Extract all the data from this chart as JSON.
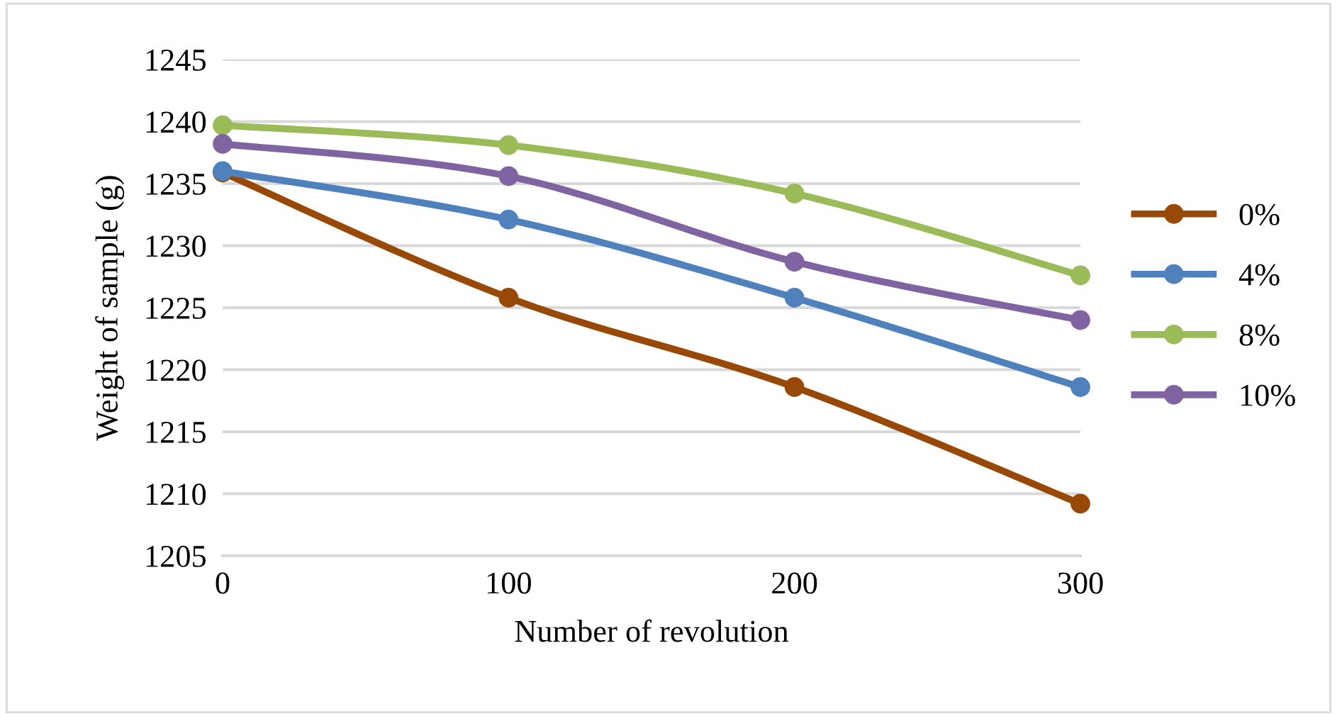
{
  "chart_data": {
    "type": "line",
    "xlabel": "Number of revolution",
    "ylabel": "Weight of sample (g)",
    "x": [
      0,
      100,
      200,
      300
    ],
    "series": [
      {
        "name": "0%",
        "color": "#984807",
        "values": [
          1235.9,
          1225.8,
          1218.6,
          1209.2
        ]
      },
      {
        "name": "4%",
        "color": "#4f81bd",
        "values": [
          1236.0,
          1232.1,
          1225.8,
          1218.6
        ]
      },
      {
        "name": "8%",
        "color": "#9bbb59",
        "values": [
          1239.7,
          1238.1,
          1234.2,
          1227.6
        ]
      },
      {
        "name": "10%",
        "color": "#8064a2",
        "values": [
          1238.2,
          1235.6,
          1228.7,
          1224.0
        ]
      }
    ],
    "xlim": [
      0,
      300
    ],
    "xticks": [
      0,
      100,
      200,
      300
    ],
    "ylim": [
      1205,
      1245
    ],
    "yticks": [
      1205,
      1210,
      1215,
      1220,
      1225,
      1230,
      1235,
      1240,
      1245
    ],
    "grid": "y",
    "legend": "right",
    "marker": "circle",
    "line_style": "solid"
  }
}
